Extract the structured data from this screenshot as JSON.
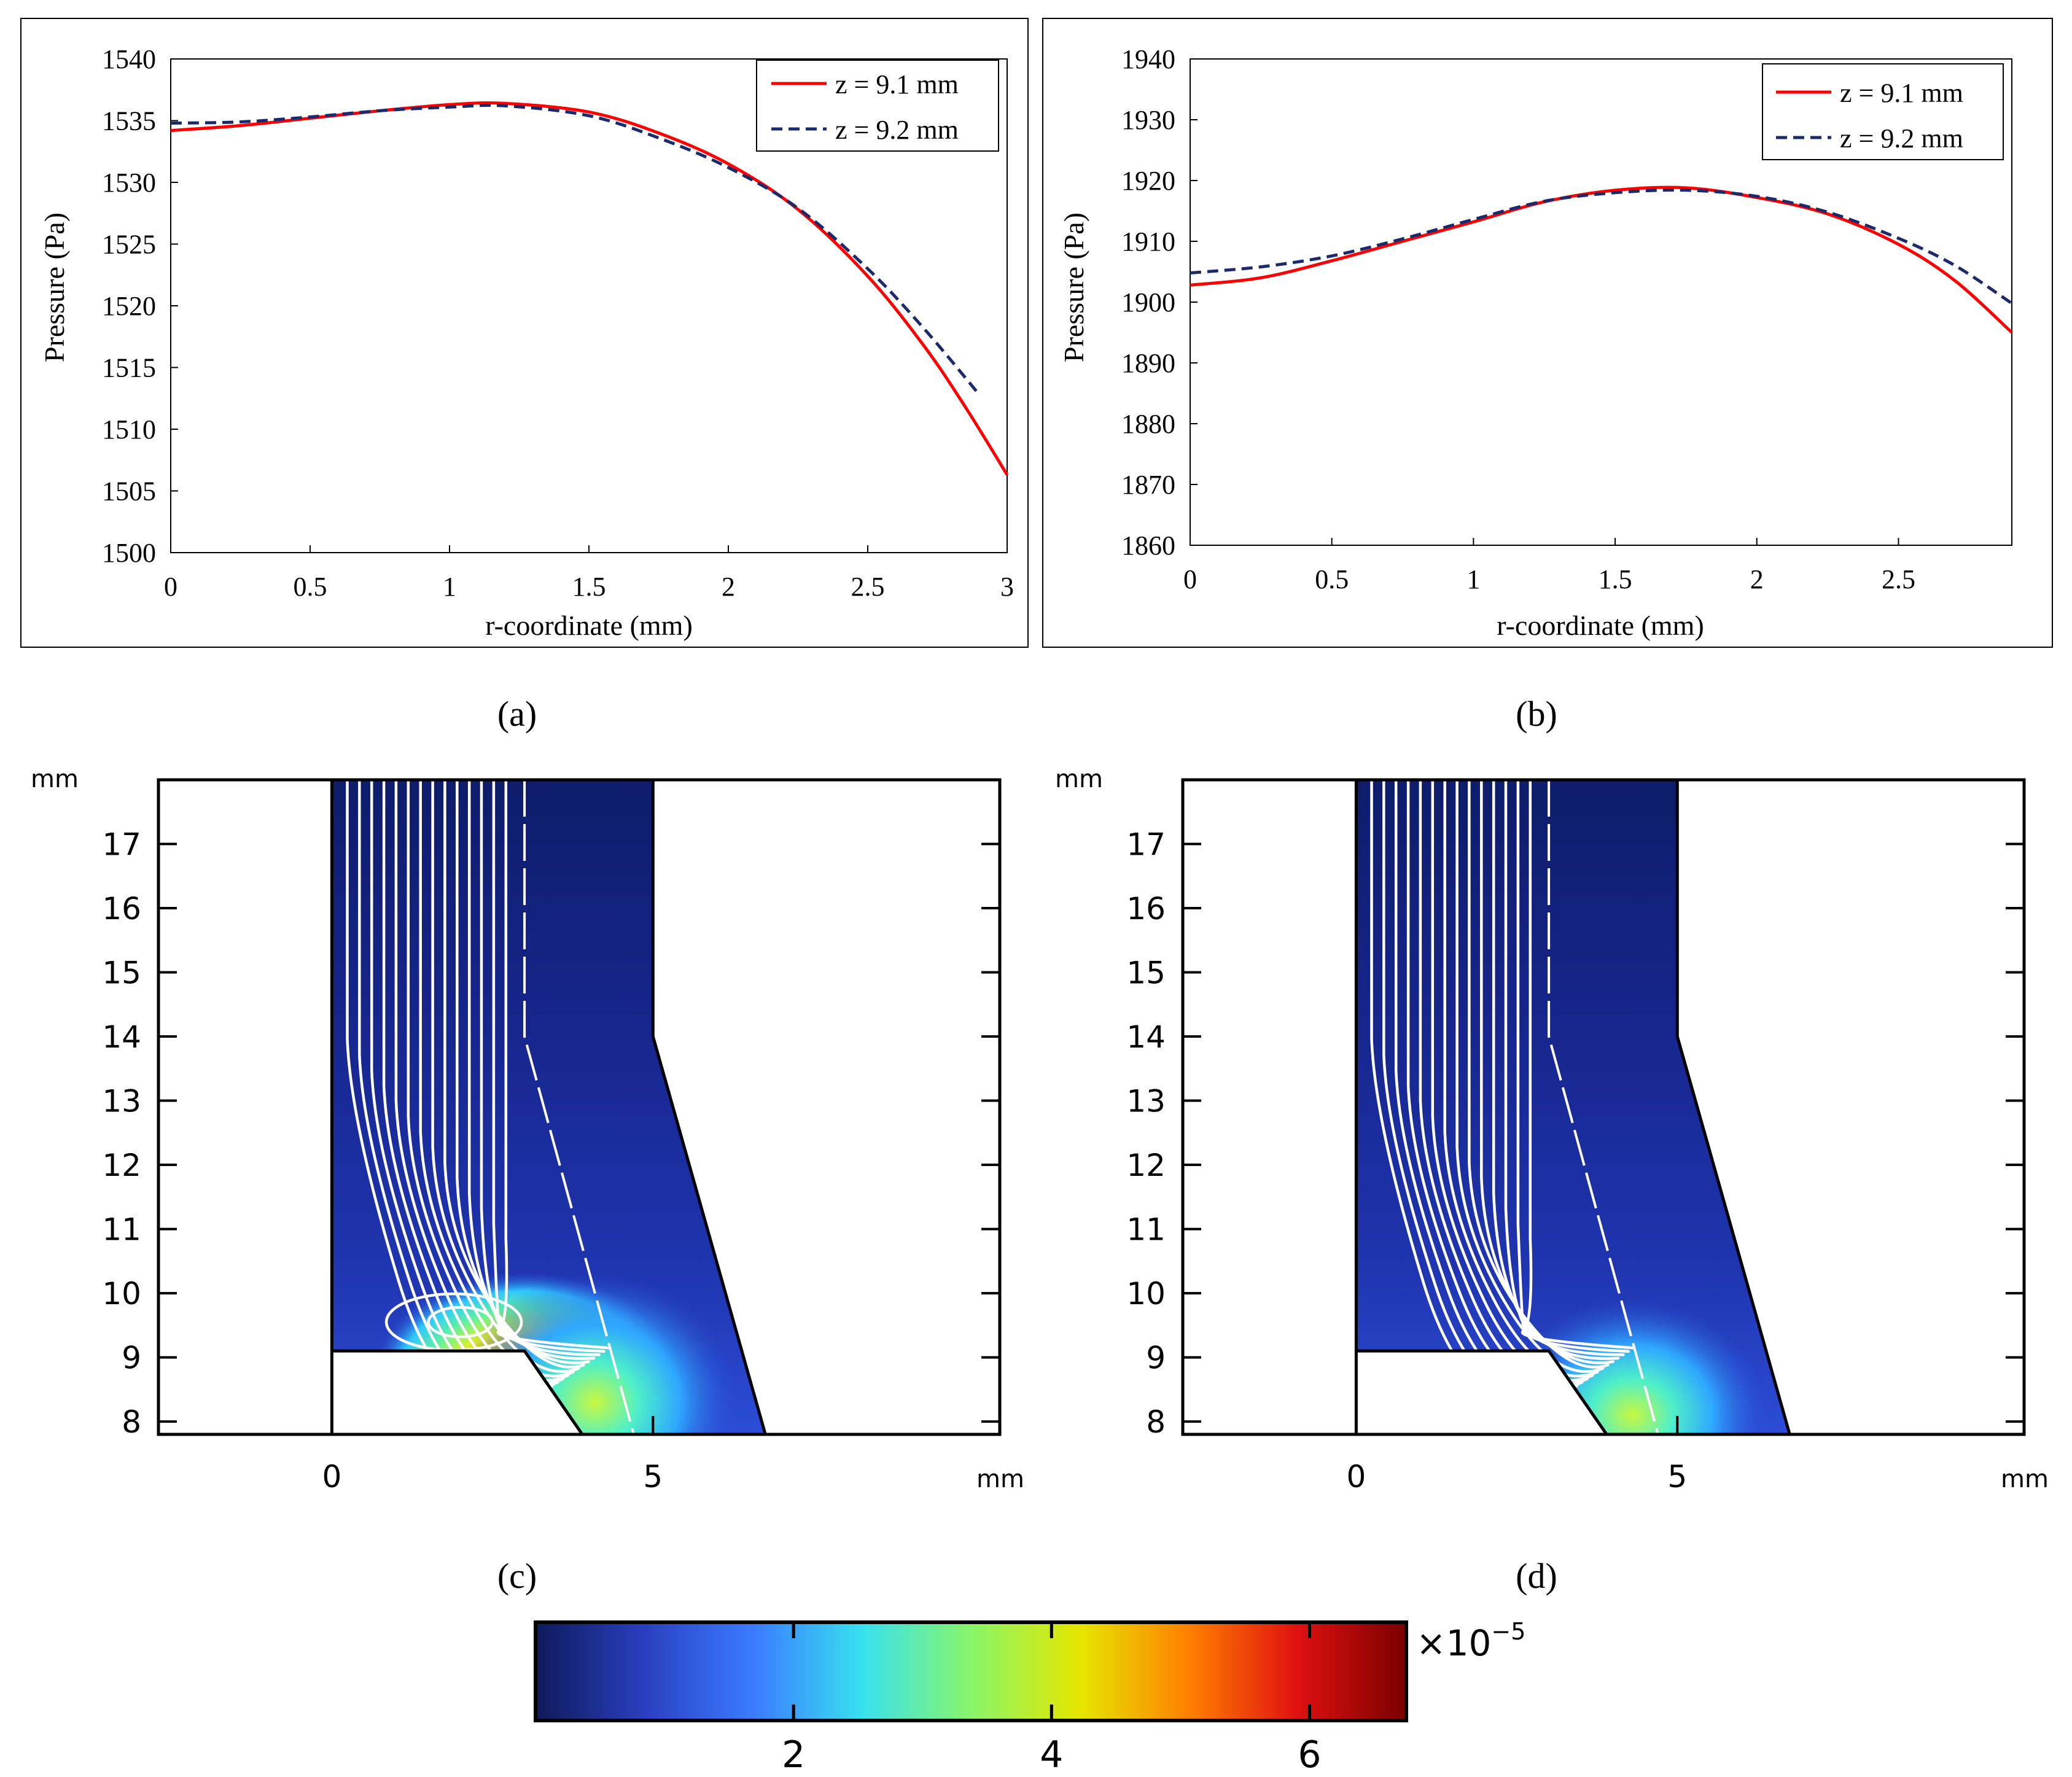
{
  "chart_data": [
    {
      "panel": "a",
      "type": "line",
      "xlabel": "r-coordinate (mm)",
      "ylabel": "Pressure (Pa)",
      "xlim": [
        0,
        3
      ],
      "ylim": [
        1500,
        1540
      ],
      "xticks": [
        0,
        0.5,
        1,
        1.5,
        2,
        2.5,
        3
      ],
      "xtick_labels": [
        "0",
        "0.5",
        "1",
        "1.5",
        "2",
        "2.5",
        "3"
      ],
      "yticks": [
        1500,
        1505,
        1510,
        1515,
        1520,
        1525,
        1530,
        1535,
        1540
      ],
      "ytick_labels": [
        "1500",
        "1505",
        "1510",
        "1515",
        "1520",
        "1525",
        "1530",
        "1535",
        "1540"
      ],
      "legend_position": "top-right",
      "series": [
        {
          "name": "z = 9.1 mm",
          "color": "#ff0000",
          "style": "solid",
          "x": [
            0,
            0.25,
            0.5,
            0.75,
            1.0,
            1.2,
            1.5,
            1.75,
            2.0,
            2.25,
            2.5,
            2.7,
            2.85,
            3.0
          ],
          "y": [
            1534.2,
            1534.6,
            1535.2,
            1535.8,
            1536.3,
            1536.4,
            1535.7,
            1534.0,
            1531.5,
            1527.8,
            1522.4,
            1516.8,
            1511.8,
            1506.3
          ]
        },
        {
          "name": "z = 9.2 mm",
          "color": "#1a2a6c",
          "style": "dashed",
          "x": [
            0,
            0.25,
            0.5,
            0.75,
            1.0,
            1.2,
            1.5,
            1.75,
            2.0,
            2.25,
            2.5,
            2.7,
            2.9
          ],
          "y": [
            1534.8,
            1534.9,
            1535.3,
            1535.8,
            1536.1,
            1536.2,
            1535.4,
            1533.6,
            1531.2,
            1527.9,
            1523.0,
            1518.2,
            1512.8
          ]
        }
      ]
    },
    {
      "panel": "b",
      "type": "line",
      "xlabel": "r-coordinate (mm)",
      "ylabel": "Pressure (Pa)",
      "xlim": [
        0,
        2.9
      ],
      "ylim": [
        1860,
        1940
      ],
      "xticks": [
        0,
        0.5,
        1,
        1.5,
        2,
        2.5
      ],
      "xtick_labels": [
        "0",
        "0.5",
        "1",
        "1.5",
        "2",
        "2.5"
      ],
      "yticks": [
        1860,
        1870,
        1880,
        1890,
        1900,
        1910,
        1920,
        1930,
        1940
      ],
      "ytick_labels": [
        "1860",
        "1870",
        "1880",
        "1890",
        "1900",
        "1910",
        "1920",
        "1930",
        "1940"
      ],
      "legend_position": "top-right",
      "series": [
        {
          "name": "z = 9.1 mm",
          "color": "#ff0000",
          "style": "solid",
          "x": [
            0,
            0.25,
            0.5,
            0.75,
            1.0,
            1.25,
            1.5,
            1.75,
            2.0,
            2.25,
            2.5,
            2.7,
            2.9
          ],
          "y": [
            1902.8,
            1904.0,
            1906.8,
            1910.0,
            1913.2,
            1916.5,
            1918.4,
            1918.8,
            1917.2,
            1914.5,
            1909.5,
            1903.5,
            1895.0
          ]
        },
        {
          "name": "z = 9.2 mm",
          "color": "#1a2a6c",
          "style": "dashed",
          "x": [
            0,
            0.25,
            0.5,
            0.75,
            1.0,
            1.25,
            1.5,
            1.75,
            2.0,
            2.25,
            2.5,
            2.7,
            2.9
          ],
          "y": [
            1904.8,
            1905.8,
            1907.6,
            1910.4,
            1913.6,
            1916.6,
            1918.0,
            1918.4,
            1917.4,
            1914.8,
            1910.5,
            1906.0,
            1899.8
          ]
        }
      ]
    },
    {
      "panel": "c",
      "type": "heatmap",
      "xunit": "mm",
      "yunit": "mm",
      "xlim": [
        -2.7,
        10.4
      ],
      "ylim": [
        7.8,
        18
      ],
      "xticks": [
        0,
        5
      ],
      "xtick_labels": [
        "0",
        "5"
      ],
      "yticks": [
        8,
        9,
        10,
        11,
        12,
        13,
        14,
        15,
        16,
        17
      ],
      "ytick_labels": [
        "8",
        "9",
        "10",
        "11",
        "12",
        "13",
        "14",
        "15",
        "16",
        "17"
      ],
      "geometry_mm": {
        "inner_wall": [
          [
            3.0,
            18
          ],
          [
            3.0,
            14.0
          ],
          [
            4.7,
            7.8
          ]
        ],
        "outer_wall": [
          [
            5.0,
            18
          ],
          [
            5.0,
            14.0
          ],
          [
            6.75,
            7.8
          ]
        ],
        "step": [
          [
            0,
            9.1
          ],
          [
            3.0,
            9.1
          ],
          [
            3.9,
            7.8
          ]
        ]
      },
      "vortex": true,
      "max_velocity_region": "near step corner (r ≈ 3 mm, z ≈ 9 mm)"
    },
    {
      "panel": "d",
      "type": "heatmap",
      "xunit": "mm",
      "yunit": "mm",
      "xlim": [
        -2.7,
        10.4
      ],
      "ylim": [
        7.8,
        18
      ],
      "xticks": [
        0,
        5
      ],
      "xtick_labels": [
        "0",
        "5"
      ],
      "yticks": [
        8,
        9,
        10,
        11,
        12,
        13,
        14,
        15,
        16,
        17
      ],
      "ytick_labels": [
        "8",
        "9",
        "10",
        "11",
        "12",
        "13",
        "14",
        "15",
        "16",
        "17"
      ],
      "geometry_mm": {
        "inner_wall": [
          [
            3.0,
            18
          ],
          [
            3.0,
            14.0
          ],
          [
            4.7,
            7.8
          ]
        ],
        "outer_wall": [
          [
            5.0,
            18
          ],
          [
            5.0,
            14.0
          ],
          [
            6.75,
            7.8
          ]
        ],
        "step": [
          [
            0,
            9.1
          ],
          [
            3.0,
            9.1
          ],
          [
            3.9,
            7.8
          ]
        ]
      },
      "vortex": false,
      "max_velocity_region": "below step in gap (r ≈ 4.5 mm, z ≈ 8 mm)"
    }
  ],
  "colorbar": {
    "ticks": [
      2,
      4,
      6
    ],
    "tick_labels": [
      "2",
      "4",
      "6"
    ],
    "range": [
      0,
      6.75
    ],
    "multiplier": "×10",
    "exponent": "−5",
    "colors": [
      "#0d1a5a",
      "#2a3fc0",
      "#3b7bff",
      "#38e0f0",
      "#88f56a",
      "#e6e600",
      "#ff8000",
      "#e01010",
      "#7a0000"
    ]
  },
  "captions": {
    "a": "(a)",
    "b": "(b)",
    "c": "(c)",
    "d": "(d)"
  }
}
